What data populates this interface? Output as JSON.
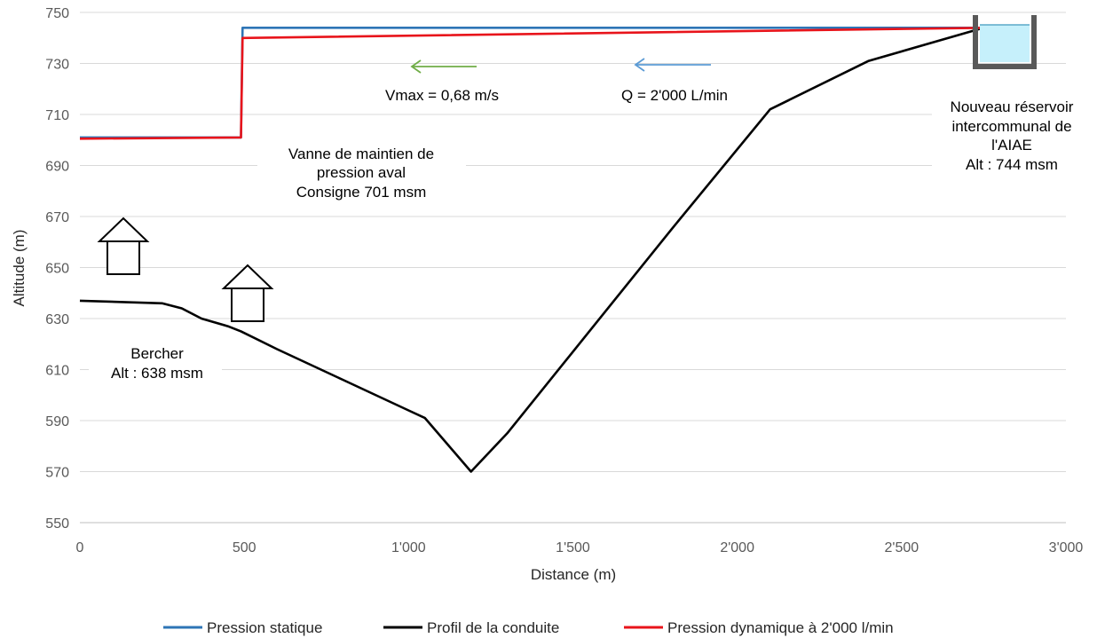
{
  "chart_data": {
    "type": "line",
    "xlabel": "Distance (m)",
    "ylabel": "Altitude (m)",
    "xlim": [
      0,
      3000
    ],
    "ylim": [
      550,
      750
    ],
    "x_ticks": [
      0,
      500,
      1000,
      1500,
      2000,
      2500,
      3000
    ],
    "x_tick_labels": [
      "0",
      "500",
      "1'000",
      "1'500",
      "2'000",
      "2'500",
      "3'000"
    ],
    "y_ticks": [
      550,
      570,
      590,
      610,
      630,
      650,
      670,
      690,
      710,
      730,
      750
    ],
    "y_tick_labels": [
      "550",
      "570",
      "590",
      "610",
      "630",
      "650",
      "670",
      "690",
      "710",
      "730",
      "750"
    ],
    "grid": "horizontal",
    "legend_position": "bottom",
    "series": [
      {
        "name": "Pression statique",
        "color": "#2e75b6",
        "points": [
          [
            0,
            701
          ],
          [
            490,
            701
          ],
          [
            495,
            744
          ],
          [
            2760,
            744
          ]
        ]
      },
      {
        "name": "Profil de la conduite",
        "color": "#000000",
        "points": [
          [
            0,
            637
          ],
          [
            250,
            636
          ],
          [
            310,
            634
          ],
          [
            370,
            630
          ],
          [
            450,
            627
          ],
          [
            490,
            625
          ],
          [
            600,
            618
          ],
          [
            800,
            606
          ],
          [
            1000,
            594
          ],
          [
            1050,
            591
          ],
          [
            1190,
            570
          ],
          [
            1300,
            585
          ],
          [
            1500,
            617
          ],
          [
            1800,
            665
          ],
          [
            2100,
            712
          ],
          [
            2400,
            731
          ],
          [
            2750,
            744
          ]
        ]
      },
      {
        "name": "Pression dynamique à 2'000 l/min",
        "color": "#e8141b",
        "points": [
          [
            0,
            700.5
          ],
          [
            490,
            701
          ],
          [
            495,
            740
          ],
          [
            2760,
            744
          ]
        ]
      }
    ],
    "annotations": {
      "vmax": "Vmax = 0,68 m/s",
      "flow": "Q = 2'000 L/min",
      "valve": [
        "Vanne de maintien de",
        "pression aval",
        "Consigne 701 msm"
      ],
      "reservoir": [
        "Nouveau réservoir",
        "intercommunal de",
        "l'AIAE",
        "Alt : 744 msm"
      ],
      "bercher": [
        "Bercher",
        "Alt : 638 msm"
      ]
    },
    "arrows": {
      "vmax_color": "#70ad47",
      "flow_color": "#5b9bd5"
    }
  }
}
